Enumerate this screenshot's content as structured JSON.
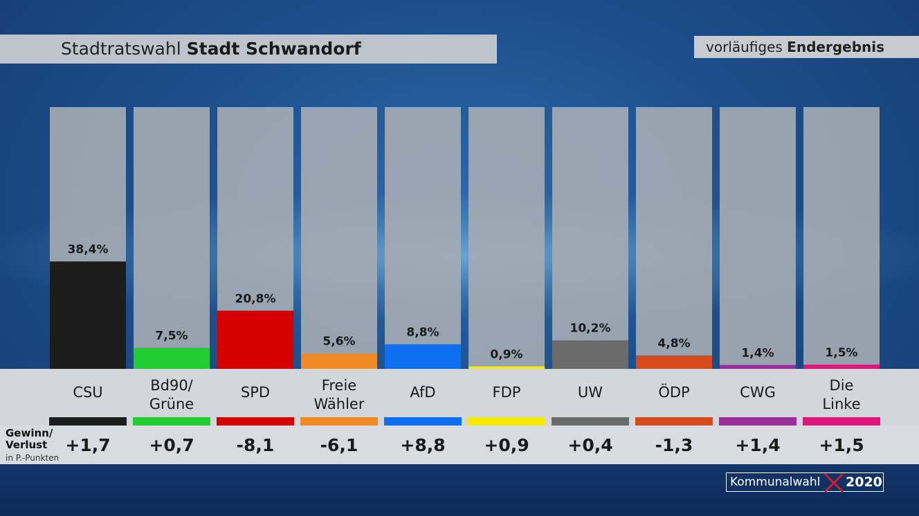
{
  "header": {
    "title_prefix": "Stadtratswahl",
    "title_place": "Stadt Schwandorf",
    "status_prefix": "vorläufiges",
    "status_bold": "Endergebnis"
  },
  "change_section": {
    "title_line1": "Gewinn/",
    "title_line2": "Verlust",
    "subtitle": "in P.-Punkten"
  },
  "branding": {
    "text": "Kommunalwahl",
    "year": "2020",
    "x_icon": "ballot-cross-icon",
    "x_color": "#d01e2a"
  },
  "chart_data": {
    "type": "bar",
    "categories": [
      "CSU",
      "Bd90/ Grüne",
      "SPD",
      "Freie Wähler",
      "AfD",
      "FDP",
      "UW",
      "ÖDP",
      "CWG",
      "Die Linke"
    ],
    "category_lines": [
      [
        "CSU"
      ],
      [
        "Bd90/",
        "Grüne"
      ],
      [
        "SPD"
      ],
      [
        "Freie",
        "Wähler"
      ],
      [
        "AfD"
      ],
      [
        "FDP"
      ],
      [
        "UW"
      ],
      [
        "ÖDP"
      ],
      [
        "CWG"
      ],
      [
        "Die",
        "Linke"
      ]
    ],
    "values": [
      38.4,
      7.5,
      20.8,
      5.6,
      8.8,
      0.9,
      10.2,
      4.8,
      1.4,
      1.5
    ],
    "value_labels": [
      "38,4%",
      "7,5%",
      "20,8%",
      "5,6%",
      "8,8%",
      "0,9%",
      "10,2%",
      "4,8%",
      "1,4%",
      "1,5%"
    ],
    "changes": [
      "+1,7",
      "+0,7",
      "-8,1",
      "-6,1",
      "+8,8",
      "+0,9",
      "+0,4",
      "-1,3",
      "+1,4",
      "+1,5"
    ],
    "colors": [
      "#1c1c1c",
      "#22cc33",
      "#d40000",
      "#f08a25",
      "#0d6ff2",
      "#f5ea00",
      "#6b6b6b",
      "#d64a1e",
      "#9b2e9b",
      "#e0157a"
    ],
    "ylim": [
      0,
      100
    ]
  }
}
